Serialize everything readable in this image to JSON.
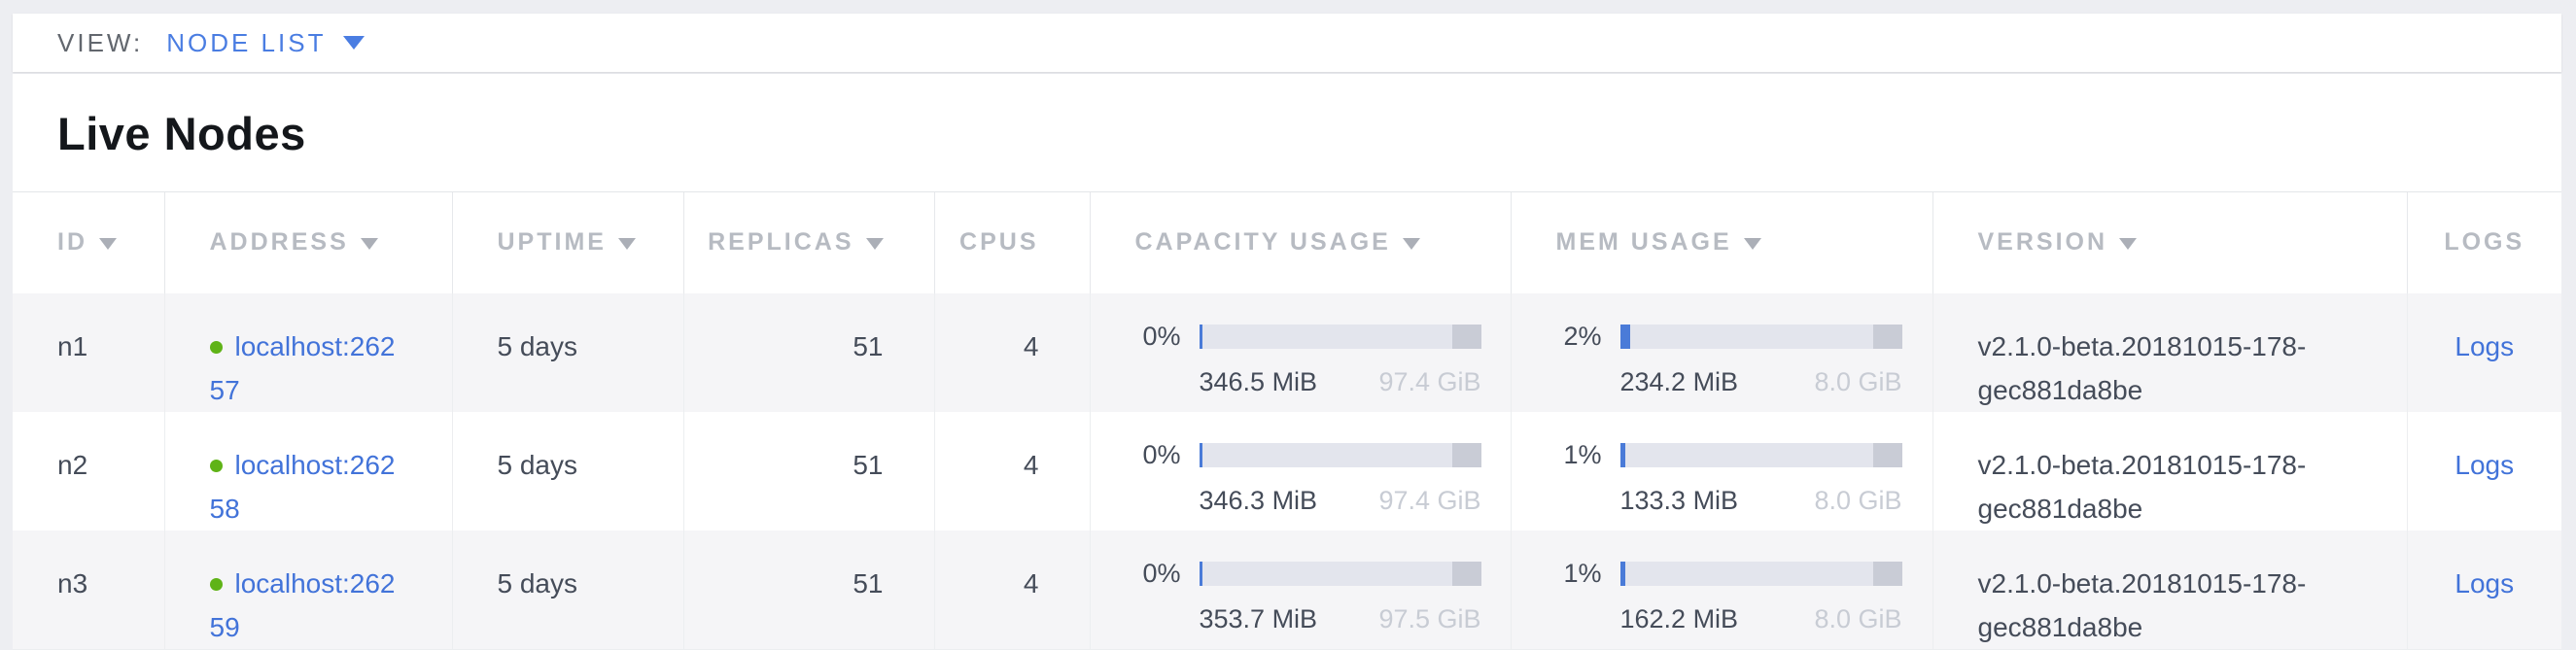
{
  "view_bar": {
    "label": "VIEW:",
    "selected": "NODE LIST"
  },
  "page": {
    "title": "Live Nodes"
  },
  "table": {
    "columns": [
      {
        "key": "id",
        "label": "ID",
        "sortable": true
      },
      {
        "key": "address",
        "label": "ADDRESS",
        "sortable": true
      },
      {
        "key": "uptime",
        "label": "UPTIME",
        "sortable": true
      },
      {
        "key": "replicas",
        "label": "REPLICAS",
        "sortable": true
      },
      {
        "key": "cpus",
        "label": "CPUS",
        "sortable": false
      },
      {
        "key": "capacity",
        "label": "CAPACITY USAGE",
        "sortable": true
      },
      {
        "key": "mem",
        "label": "MEM USAGE",
        "sortable": true
      },
      {
        "key": "version",
        "label": "VERSION",
        "sortable": true
      },
      {
        "key": "logs",
        "label": "LOGS",
        "sortable": false
      }
    ],
    "rows": [
      {
        "id": "n1",
        "status": "live",
        "address": "localhost:26257",
        "uptime": "5 days",
        "replicas": "51",
        "cpus": "4",
        "capacity": {
          "percent_label": "0%",
          "percent": 0,
          "used": "346.5 MiB",
          "total": "97.4 GiB"
        },
        "mem": {
          "percent_label": "2%",
          "percent": 2,
          "used": "234.2 MiB",
          "total": "8.0 GiB"
        },
        "version": "v2.1.0-beta.20181015-178-gec881da8be",
        "logs_label": "Logs"
      },
      {
        "id": "n2",
        "status": "live",
        "address": "localhost:26258",
        "uptime": "5 days",
        "replicas": "51",
        "cpus": "4",
        "capacity": {
          "percent_label": "0%",
          "percent": 0,
          "used": "346.3 MiB",
          "total": "97.4 GiB"
        },
        "mem": {
          "percent_label": "1%",
          "percent": 1,
          "used": "133.3 MiB",
          "total": "8.0 GiB"
        },
        "version": "v2.1.0-beta.20181015-178-gec881da8be",
        "logs_label": "Logs"
      },
      {
        "id": "n3",
        "status": "live",
        "address": "localhost:26259",
        "uptime": "5 days",
        "replicas": "51",
        "cpus": "4",
        "capacity": {
          "percent_label": "0%",
          "percent": 0,
          "used": "353.7 MiB",
          "total": "97.5 GiB"
        },
        "mem": {
          "percent_label": "1%",
          "percent": 1,
          "used": "162.2 MiB",
          "total": "8.0 GiB"
        },
        "version": "v2.1.0-beta.20181015-178-gec881da8be",
        "logs_label": "Logs"
      }
    ]
  },
  "colors": {
    "accent_blue": "#4a7de2",
    "link_blue": "#4273d9",
    "live_green": "#5fb317",
    "bar_track": "#e3e5ed",
    "bar_used": "#4a7bd8",
    "bar_cap": "#c9ccd6",
    "row_alt_bg": "#f5f5f7",
    "header_text": "#b7bbc2",
    "body_text": "#454c59",
    "muted_text": "#c8ccd4",
    "page_bg": "#edeef2"
  }
}
